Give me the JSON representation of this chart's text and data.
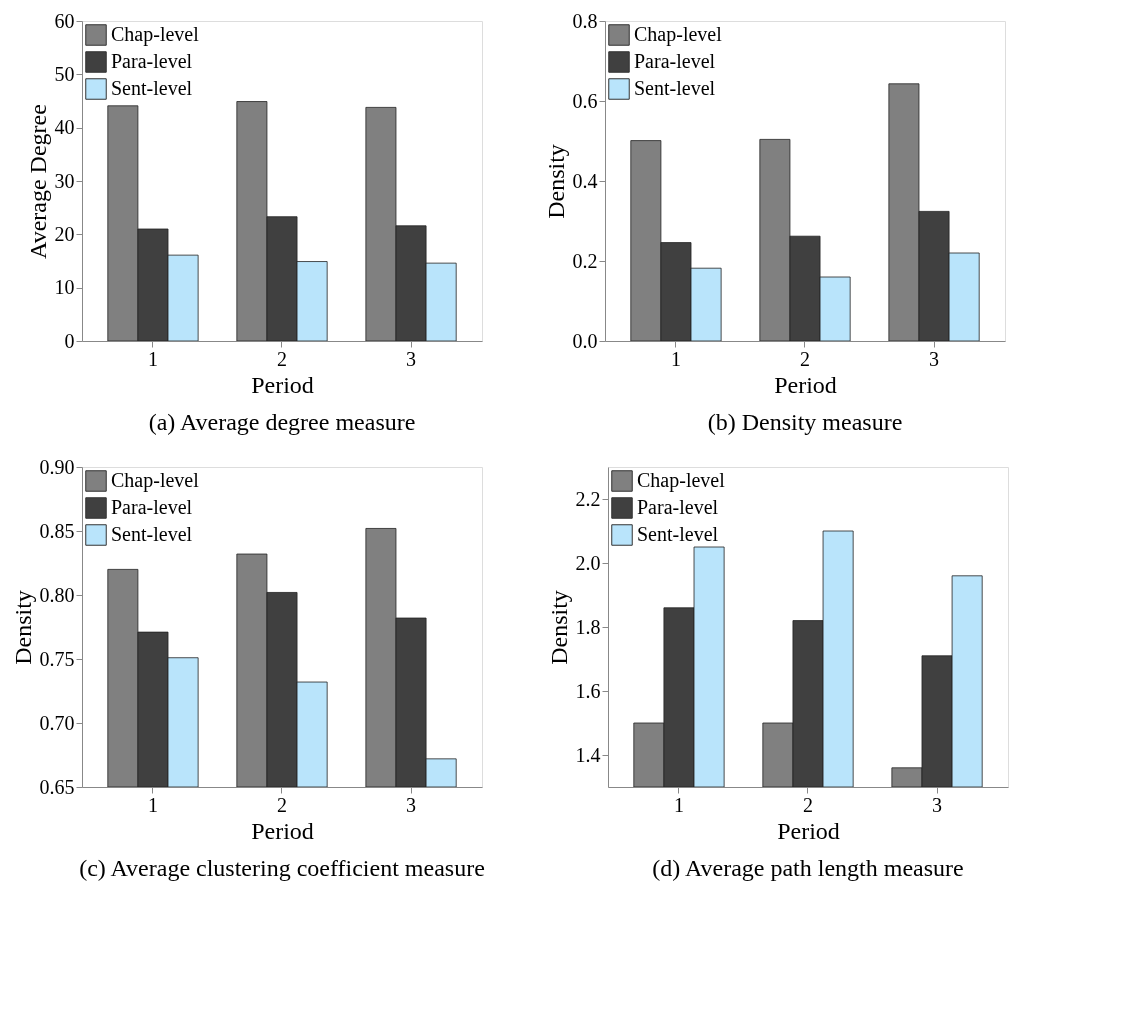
{
  "chart_data": [
    {
      "type": "bar",
      "title": "(a) Average degree measure",
      "xlabel": "Period",
      "ylabel": "Average Degree",
      "categories": [
        "1",
        "2",
        "3"
      ],
      "ylim": [
        0,
        60
      ],
      "yticks": [
        0,
        10,
        20,
        30,
        40,
        50,
        60
      ],
      "grid": false,
      "legend": "top left",
      "series": [
        {
          "name": "Chap-level",
          "color": "#808080",
          "values": [
            44.1,
            44.9,
            43.8
          ]
        },
        {
          "name": "Para-level",
          "color": "#404040",
          "values": [
            21.0,
            23.3,
            21.6
          ]
        },
        {
          "name": "Sent-level",
          "color": "#b9e4fb",
          "values": [
            16.1,
            14.9,
            14.6
          ]
        }
      ]
    },
    {
      "type": "bar",
      "title": "(b) Density measure",
      "xlabel": "Period",
      "ylabel": "Density",
      "categories": [
        "1",
        "2",
        "3"
      ],
      "ylim": [
        0,
        0.8
      ],
      "yticks": [
        {
          "value": 0,
          "label": "0.0"
        },
        0.2,
        0.4,
        0.6,
        0.8
      ],
      "grid": false,
      "legend": "top left",
      "series": [
        {
          "name": "Chap-level",
          "color": "#808080",
          "values": [
            0.501,
            0.504,
            0.643
          ]
        },
        {
          "name": "Para-level",
          "color": "#404040",
          "values": [
            0.246,
            0.262,
            0.324
          ]
        },
        {
          "name": "Sent-level",
          "color": "#b9e4fb",
          "values": [
            0.182,
            0.16,
            0.22
          ]
        }
      ]
    },
    {
      "type": "bar",
      "title": "(c) Average clustering coefficient measure",
      "xlabel": "Period",
      "ylabel": "Density",
      "categories": [
        "1",
        "2",
        "3"
      ],
      "ylim": [
        0.65,
        0.9
      ],
      "yticks": [
        0.65,
        {
          "value": 0.7,
          "label": "0.70"
        },
        0.75,
        {
          "value": 0.8,
          "label": "0.80"
        },
        0.85,
        {
          "value": 0.9,
          "label": "0.90"
        }
      ],
      "grid": false,
      "legend": "top left",
      "series": [
        {
          "name": "Chap-level",
          "color": "#808080",
          "values": [
            0.82,
            0.832,
            0.852
          ]
        },
        {
          "name": "Para-level",
          "color": "#404040",
          "values": [
            0.771,
            0.802,
            0.782
          ]
        },
        {
          "name": "Sent-level",
          "color": "#b9e4fb",
          "values": [
            0.751,
            0.732,
            0.672
          ]
        }
      ]
    },
    {
      "type": "bar",
      "title": "(d) Average path length measure",
      "xlabel": "Period",
      "ylabel": "Density",
      "categories": [
        "1",
        "2",
        "3"
      ],
      "ylim": [
        1.3,
        2.3
      ],
      "yticks": [
        1.4,
        1.6,
        1.8,
        {
          "value": 2.0,
          "label": "2.0"
        },
        2.2
      ],
      "grid": false,
      "legend": "top left",
      "series": [
        {
          "name": "Chap-level",
          "color": "#808080",
          "values": [
            1.5,
            1.5,
            1.36
          ]
        },
        {
          "name": "Para-level",
          "color": "#404040",
          "values": [
            1.86,
            1.82,
            1.71
          ]
        },
        {
          "name": "Sent-level",
          "color": "#b9e4fb",
          "values": [
            2.05,
            2.1,
            1.96
          ]
        }
      ]
    }
  ]
}
